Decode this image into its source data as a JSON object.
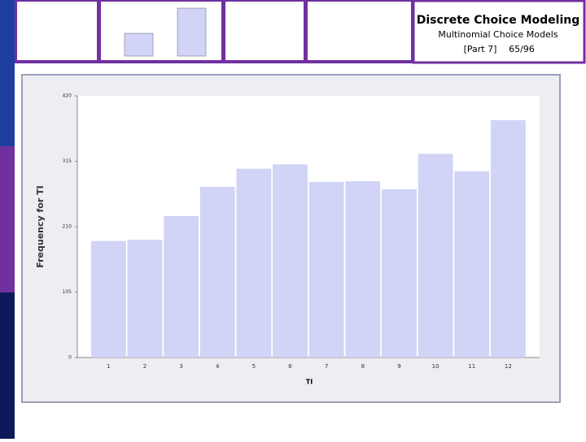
{
  "header": {
    "title": "Discrete Choice Modeling",
    "subtitle": "Multinomial Choice Models",
    "part": "[Part 7]",
    "page": "65/96"
  },
  "chart_data": {
    "type": "bar",
    "x_label": "TI",
    "y_label": "Frequency for TI",
    "categories": [
      "1",
      "2",
      "3",
      "4",
      "5",
      "6",
      "7",
      "8",
      "9",
      "10",
      "11",
      "12"
    ],
    "values": [
      187,
      189,
      227,
      274,
      303,
      310,
      282,
      283,
      270,
      327,
      299,
      381
    ],
    "color": "#d1d4f7",
    "ylim": [
      0,
      420
    ],
    "yticks": [
      0,
      105,
      210,
      315,
      420
    ],
    "grid": false
  }
}
